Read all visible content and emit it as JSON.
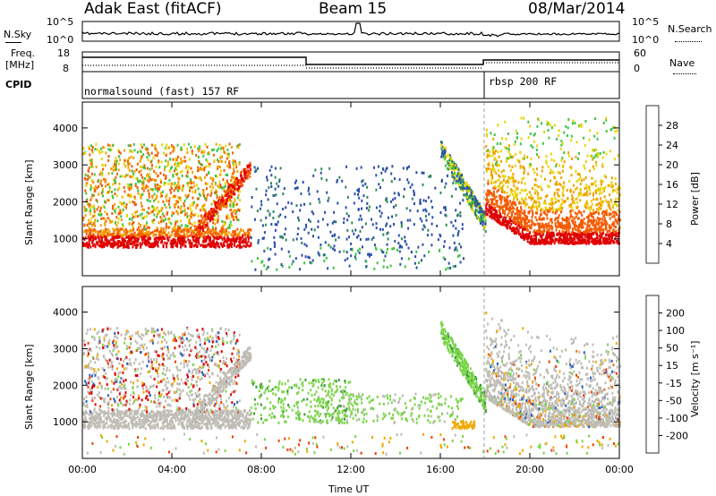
{
  "header": {
    "title": "Adak East (fitACF)",
    "beam": "Beam 15",
    "date": "08/Mar/2014"
  },
  "noise_panel": {
    "left_label": "N.Sky",
    "right_label": "N.Search",
    "left_ticks": [
      "10^5",
      "10^0"
    ],
    "right_ticks": [
      "10^5",
      "10^0"
    ]
  },
  "freq_panel": {
    "left_label_1": "Freq.",
    "left_label_2": "[MHz]",
    "left_ticks": [
      "18",
      "8"
    ],
    "right_label": "Nave",
    "right_ticks": [
      "60",
      "0"
    ]
  },
  "cpid_panel": {
    "label": "CPID",
    "mode_1": "normalsound (fast) 157 RF",
    "mode_2": "rbsp 200 RF"
  },
  "chart_data": [
    {
      "type": "heatmap",
      "title": "",
      "xlabel": "",
      "ylabel": "Slant Range [km]",
      "xticks": [
        "00:00",
        "04:00",
        "08:00",
        "12:00",
        "16:00",
        "20:00",
        "00:00"
      ],
      "yticks": [
        "1000",
        "2000",
        "3000",
        "4000"
      ],
      "colorbar": {
        "label": "Power [dB]",
        "ticks": [
          "4",
          "8",
          "12",
          "16",
          "20",
          "24",
          "28"
        ],
        "colors": [
          "#0000d0",
          "#2a4faa",
          "#2f8a56",
          "#3ec444",
          "#e8d400",
          "#f0a000",
          "#f45a00",
          "#e00000"
        ]
      }
    },
    {
      "type": "heatmap",
      "title": "",
      "xlabel": "Time UT",
      "ylabel": "Slant Range [km]",
      "xticks": [
        "00:00",
        "04:00",
        "08:00",
        "12:00",
        "16:00",
        "20:00",
        "00:00"
      ],
      "yticks": [
        "1000",
        "2000",
        "3000",
        "4000"
      ],
      "colorbar": {
        "label": "Velocity [m s⁻¹]",
        "ticks": [
          "200",
          "100",
          "50",
          "15",
          "-15",
          "-50",
          "-100",
          "-200"
        ],
        "colors": [
          "#1c2c9c",
          "#2a5cc0",
          "#3e9a3e",
          "#7ad648",
          "#bebcb4",
          "#f0a800",
          "#f07000",
          "#f03c00",
          "#e00000"
        ]
      }
    }
  ]
}
